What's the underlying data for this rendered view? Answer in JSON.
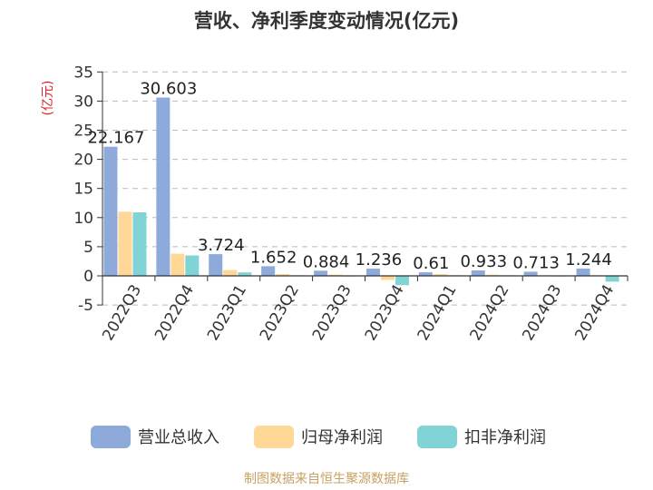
{
  "chart_data": {
    "type": "bar",
    "title": "营收、净利季度变动情况(亿元)",
    "unit": "(亿元)",
    "categories": [
      "2022Q3",
      "2022Q4",
      "2023Q1",
      "2023Q2",
      "2023Q3",
      "2023Q4",
      "2024Q1",
      "2024Q2",
      "2024Q3",
      "2024Q4"
    ],
    "series": [
      {
        "name": "营业总收入",
        "color": "#8eaadb",
        "values": [
          22.167,
          30.603,
          3.724,
          1.652,
          0.884,
          1.236,
          0.61,
          0.933,
          0.713,
          1.244
        ],
        "labels": [
          "22.167",
          "30.603",
          "3.724",
          "1.652",
          "0.884",
          "1.236",
          "0.61",
          "0.933",
          "0.713",
          "1.244"
        ]
      },
      {
        "name": "归母净利润",
        "color": "#ffd797",
        "values": [
          11.0,
          3.8,
          1.0,
          0.3,
          0.2,
          -0.7,
          0.3,
          0.2,
          0.1,
          0.1
        ]
      },
      {
        "name": "扣非净利润",
        "color": "#80d4d6",
        "values": [
          10.9,
          3.5,
          0.6,
          0.1,
          0.05,
          -1.6,
          0.1,
          0.1,
          0.05,
          -1.0
        ]
      }
    ],
    "yticks": [
      "35",
      "30",
      "25",
      "20",
      "15",
      "10",
      "5",
      "0",
      "-5"
    ],
    "ylim": [
      -5,
      35
    ],
    "grid": true,
    "legend_position": "bottom",
    "source": "制图数据来自恒生聚源数据库"
  }
}
